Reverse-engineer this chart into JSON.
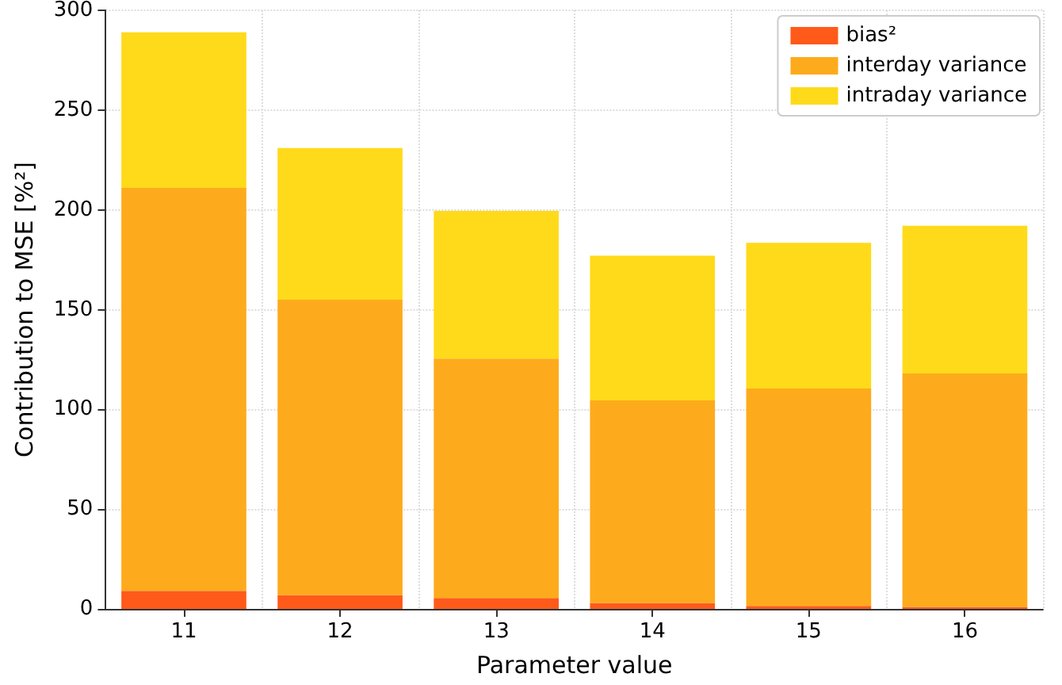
{
  "chart_data": {
    "type": "bar",
    "stacked": true,
    "xlabel": "Parameter value",
    "ylabel": "Contribution to MSE [%²]",
    "categories": [
      "11",
      "12",
      "13",
      "14",
      "15",
      "16"
    ],
    "series": [
      {
        "name": "bias²",
        "color": "#ff5a1a",
        "values": [
          9,
          7,
          5.5,
          3,
          1.5,
          1
        ]
      },
      {
        "name": "interday variance",
        "color": "#fdab1c",
        "values": [
          202,
          148,
          120,
          101.5,
          109,
          117
        ]
      },
      {
        "name": "intraday variance",
        "color": "#ffda1a",
        "values": [
          78,
          76,
          74,
          72.5,
          73,
          74
        ]
      }
    ],
    "ylim": [
      0,
      300
    ],
    "yticks": [
      0,
      50,
      100,
      150,
      200,
      250,
      300
    ],
    "grid": true,
    "legend": "top right"
  }
}
